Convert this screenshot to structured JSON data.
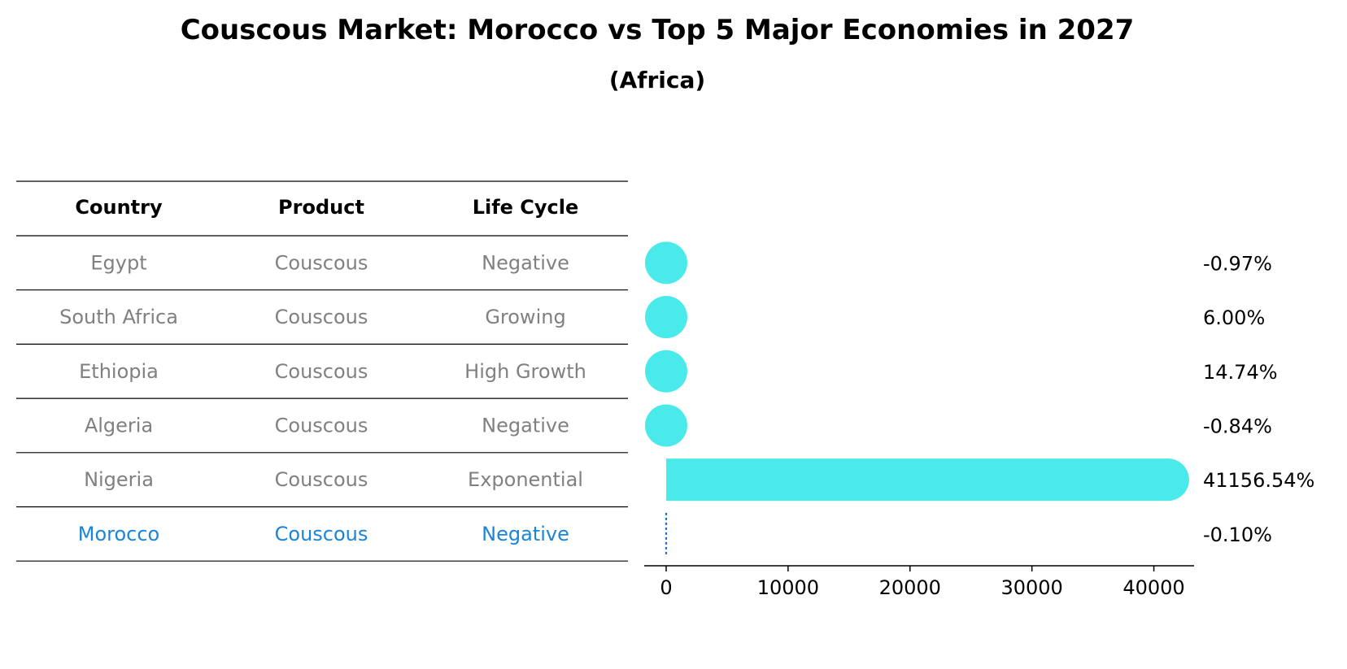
{
  "chart_data": {
    "type": "bar",
    "title": "Couscous Market: Morocco vs Top 5 Major Economies in 2027",
    "subtitle": "(Africa)",
    "table": {
      "headers": [
        "Country",
        "Product",
        "Life Cycle"
      ],
      "rows": [
        {
          "country": "Egypt",
          "product": "Couscous",
          "life_cycle": "Negative",
          "highlight": false
        },
        {
          "country": "South Africa",
          "product": "Couscous",
          "life_cycle": "Growing",
          "highlight": false
        },
        {
          "country": "Ethiopia",
          "product": "Couscous",
          "life_cycle": "High Growth",
          "highlight": false
        },
        {
          "country": "Algeria",
          "product": "Couscous",
          "life_cycle": "Negative",
          "highlight": false
        },
        {
          "country": "Nigeria",
          "product": "Couscous",
          "life_cycle": "Exponential",
          "highlight": false
        },
        {
          "country": "Morocco",
          "product": "Couscous",
          "life_cycle": "Negative",
          "highlight": true
        }
      ]
    },
    "categories": [
      "Egypt",
      "South Africa",
      "Ethiopia",
      "Algeria",
      "Nigeria",
      "Morocco"
    ],
    "values": [
      -0.97,
      6.0,
      14.74,
      -0.84,
      41156.54,
      -0.1
    ],
    "value_labels": [
      "-0.97%",
      "6.00%",
      "14.74%",
      "-0.84%",
      "41156.54%",
      "-0.10%"
    ],
    "xlim": [
      -1800,
      43300
    ],
    "xticks": [
      0,
      10000,
      20000,
      30000,
      40000
    ],
    "xtick_labels": [
      "0",
      "10000",
      "20000",
      "30000",
      "40000"
    ],
    "grid": false,
    "colors": {
      "bar": "#4aeaea",
      "highlight_text": "#1a85d8",
      "normal_text": "#808080",
      "morocco_line": "#1a6fc4",
      "axis": "#000000"
    }
  }
}
